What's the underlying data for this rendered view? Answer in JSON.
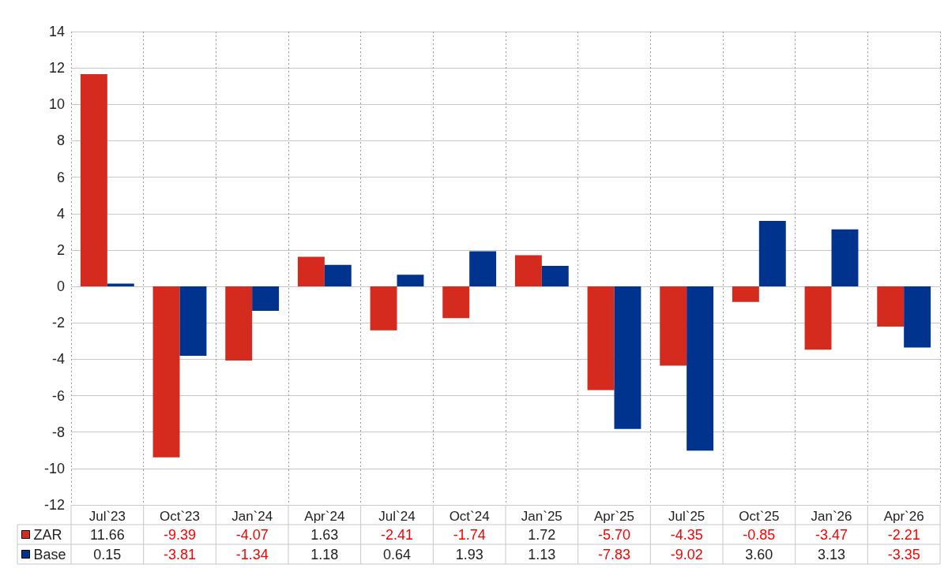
{
  "chart_data": {
    "type": "bar",
    "categories": [
      "Jul`23",
      "Oct`23",
      "Jan`24",
      "Apr`24",
      "Jul`24",
      "Oct`24",
      "Jan`25",
      "Apr`25",
      "Jul`25",
      "Oct`25",
      "Jan`26",
      "Apr`26"
    ],
    "series": [
      {
        "name": "ZAR",
        "color": "#d52b1e",
        "values": [
          11.66,
          -9.39,
          -4.07,
          1.63,
          -2.41,
          -1.74,
          1.72,
          -5.7,
          -4.35,
          -0.85,
          -3.47,
          -2.21
        ],
        "value_labels": [
          "11.66",
          "-9.39",
          "-4.07",
          "1.63",
          "-2.41",
          "-1.74",
          "1.72",
          "-5.70",
          "-4.35",
          "-0.85",
          "-3.47",
          "-2.21"
        ]
      },
      {
        "name": "Base",
        "color": "#00338d",
        "values": [
          0.15,
          -3.81,
          -1.34,
          1.18,
          0.64,
          1.93,
          1.13,
          -7.83,
          -9.02,
          3.6,
          3.13,
          -3.35
        ],
        "value_labels": [
          "0.15",
          "-3.81",
          "-1.34",
          "1.18",
          "0.64",
          "1.93",
          "1.13",
          "-7.83",
          "-9.02",
          "3.60",
          "3.13",
          "-3.35"
        ]
      }
    ],
    "ylim": [
      -12,
      14
    ],
    "yticks": [
      -12,
      -10,
      -8,
      -6,
      -4,
      -2,
      0,
      2,
      4,
      6,
      8,
      10,
      12,
      14
    ],
    "grid": true,
    "legend": "bottom left"
  }
}
